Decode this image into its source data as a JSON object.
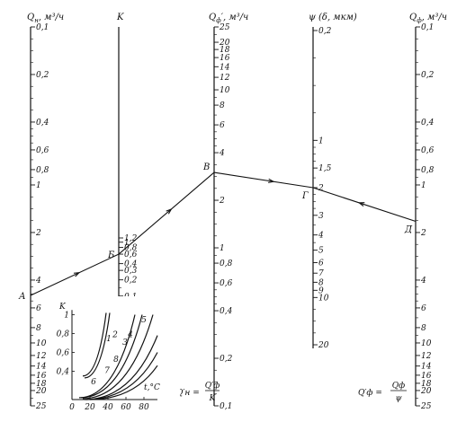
{
  "scales": [
    {
      "id": "qn",
      "header": "Q",
      "header_sub": "н",
      "header_unit": ", м³/ч",
      "ticks": [
        {
          "label": "0,1",
          "v": 0.1
        },
        {
          "label": "0,2",
          "v": 0.2
        },
        {
          "label": "0,4",
          "v": 0.4
        },
        {
          "label": "0,6",
          "v": 0.6
        },
        {
          "label": "0,8",
          "v": 0.8
        },
        {
          "label": "1",
          "v": 1
        },
        {
          "label": "2",
          "v": 2
        },
        {
          "label": "4",
          "v": 4
        },
        {
          "label": "6",
          "v": 6
        },
        {
          "label": "8",
          "v": 8
        },
        {
          "label": "10",
          "v": 10
        },
        {
          "label": "12",
          "v": 12
        },
        {
          "label": "14",
          "v": 14
        },
        {
          "label": "16",
          "v": 16
        },
        {
          "label": "18",
          "v": 18
        },
        {
          "label": "20",
          "v": 20
        },
        {
          "label": "25",
          "v": 25
        }
      ]
    },
    {
      "id": "k",
      "header": "K",
      "header_sub": "",
      "header_unit": "",
      "ticks": [
        {
          "label": "1,2",
          "v": 1.2
        },
        {
          "label": "1",
          "v": 1.0
        },
        {
          "label": "0,8",
          "v": 0.8
        },
        {
          "label": "0,6",
          "v": 0.6
        },
        {
          "label": "0,4",
          "v": 0.4
        },
        {
          "label": "0,3",
          "v": 0.3
        },
        {
          "label": "0,2",
          "v": 0.2
        },
        {
          "label": "0,1",
          "v": 0.1
        }
      ]
    },
    {
      "id": "qf1",
      "header": "Q",
      "header_sub": "ф",
      "header_unit": "′, м³/ч",
      "ticks": [
        {
          "label": "25",
          "v": 25
        },
        {
          "label": "20",
          "v": 20
        },
        {
          "label": "18",
          "v": 18
        },
        {
          "label": "16",
          "v": 16
        },
        {
          "label": "14",
          "v": 14
        },
        {
          "label": "12",
          "v": 12
        },
        {
          "label": "10",
          "v": 10
        },
        {
          "label": "8",
          "v": 8
        },
        {
          "label": "6",
          "v": 6
        },
        {
          "label": "4",
          "v": 4
        },
        {
          "label": "2",
          "v": 2
        },
        {
          "label": "1",
          "v": 1
        },
        {
          "label": "0,8",
          "v": 0.8
        },
        {
          "label": "0,6",
          "v": 0.6
        },
        {
          "label": "0,4",
          "v": 0.4
        },
        {
          "label": "0,2",
          "v": 0.2
        },
        {
          "label": "0,1",
          "v": 0.1
        }
      ]
    },
    {
      "id": "psi",
      "header": "ψ (δ, мкм)",
      "header_sub": "",
      "header_unit": "",
      "ticks": [
        {
          "label": "0,2",
          "v": 0.2
        },
        {
          "label": "1",
          "v": 1
        },
        {
          "label": "1,5",
          "v": 1.5
        },
        {
          "label": "2",
          "v": 2
        },
        {
          "label": "3",
          "v": 3
        },
        {
          "label": "4",
          "v": 4
        },
        {
          "label": "5",
          "v": 5
        },
        {
          "label": "6",
          "v": 6
        },
        {
          "label": "7",
          "v": 7
        },
        {
          "label": "8",
          "v": 8
        },
        {
          "label": "9",
          "v": 9
        },
        {
          "label": "10",
          "v": 10
        },
        {
          "label": "20",
          "v": 20
        }
      ]
    },
    {
      "id": "qf",
      "header": "Q",
      "header_sub": "ф",
      "header_unit": ", м³/ч",
      "ticks": [
        {
          "label": "0,1",
          "v": 0.1
        },
        {
          "label": "0,2",
          "v": 0.2
        },
        {
          "label": "0,4",
          "v": 0.4
        },
        {
          "label": "0,6",
          "v": 0.6
        },
        {
          "label": "0,8",
          "v": 0.8
        },
        {
          "label": "1",
          "v": 1
        },
        {
          "label": "2",
          "v": 2
        },
        {
          "label": "4",
          "v": 4
        },
        {
          "label": "6",
          "v": 6
        },
        {
          "label": "8",
          "v": 8
        },
        {
          "label": "10",
          "v": 10
        },
        {
          "label": "12",
          "v": 12
        },
        {
          "label": "14",
          "v": 14
        },
        {
          "label": "16",
          "v": 16
        },
        {
          "label": "18",
          "v": 18
        },
        {
          "label": "20",
          "v": 20
        },
        {
          "label": "25",
          "v": 25
        }
      ]
    }
  ],
  "points": [
    {
      "label": "А",
      "scale": "qn",
      "v": 5
    },
    {
      "label": "Б",
      "scale": "k",
      "v": 0.6
    },
    {
      "label": "В",
      "scale": "qf1",
      "v": 3
    },
    {
      "label": "Г",
      "scale": "psi",
      "v": 2
    },
    {
      "label": "Д",
      "scale": "qf",
      "v": 1.7
    }
  ],
  "formulas": {
    "left": {
      "lhs": "Q′н =",
      "num": "Q′ф",
      "den": "K"
    },
    "right": {
      "lhs": "Q′ф =",
      "num": "Qф",
      "den": "ψ"
    }
  },
  "inset": {
    "y_axis_label": "K",
    "x_axis_label": "t,°C",
    "y_ticks": [
      {
        "label": "0,4",
        "v": 0.4
      },
      {
        "label": "0,6",
        "v": 0.6
      },
      {
        "label": "0,8",
        "v": 0.8
      },
      {
        "label": "1",
        "v": 1
      }
    ],
    "x_ticks": [
      {
        "label": "0",
        "v": 0
      },
      {
        "label": "20",
        "v": 20
      },
      {
        "label": "40",
        "v": 40
      },
      {
        "label": "60",
        "v": 60
      },
      {
        "label": "80",
        "v": 80
      }
    ],
    "curve_labels": [
      {
        "label": "1",
        "t": 41,
        "k": 0.72
      },
      {
        "label": "2",
        "t": 48,
        "k": 0.76
      },
      {
        "label": "3",
        "t": 59,
        "k": 0.68
      },
      {
        "label": "4",
        "t": 65,
        "k": 0.76
      },
      {
        "label": "5",
        "t": 80,
        "k": 0.92
      },
      {
        "label": "6",
        "t": 24,
        "k": 0.26
      },
      {
        "label": "7",
        "t": 39,
        "k": 0.38
      },
      {
        "label": "8",
        "t": 49,
        "k": 0.5
      }
    ]
  }
}
